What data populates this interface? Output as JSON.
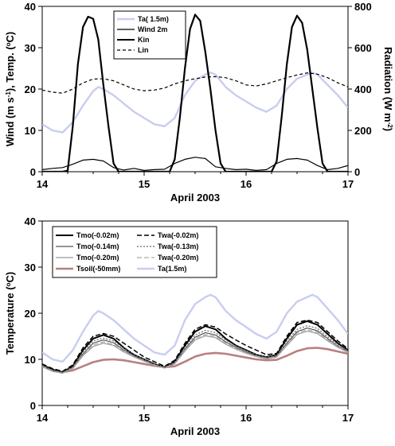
{
  "chart_data": [
    {
      "type": "line",
      "xlabel": "April 2003",
      "ylabel_left": "Wind (m s-1), Temp. (oC)",
      "ylabel_right": "Radiation (W m-2)",
      "xlim": [
        14,
        17
      ],
      "ylim_left": [
        0,
        40
      ],
      "ylim_right": [
        0,
        800
      ],
      "xticks": [
        "14",
        "15",
        "16",
        "17"
      ],
      "yticks_left": [
        "0",
        "10",
        "20",
        "30",
        "40"
      ],
      "yticks_right": [
        "0",
        "200",
        "400",
        "600",
        "800"
      ],
      "legend": [
        "Ta( 1.5m)",
        "Wind 2m",
        "Kin",
        "Lin"
      ],
      "legend_position": "top-center",
      "series": [
        {
          "name": "Ta( 1.5m)",
          "axis": "left",
          "color": "#c8cdf0",
          "x": [
            14.0,
            14.1,
            14.2,
            14.3,
            14.4,
            14.5,
            14.55,
            14.6,
            14.7,
            14.8,
            14.9,
            15.0,
            15.1,
            15.2,
            15.3,
            15.4,
            15.5,
            15.6,
            15.65,
            15.7,
            15.8,
            15.9,
            16.0,
            16.1,
            16.2,
            16.3,
            16.4,
            16.5,
            16.6,
            16.65,
            16.7,
            16.8,
            16.9,
            17.0
          ],
          "y": [
            11.5,
            10,
            9.5,
            12,
            16,
            19.5,
            20.5,
            20,
            18.5,
            16.5,
            14.5,
            13,
            11.5,
            11,
            13,
            18.5,
            22,
            23.5,
            24,
            23.5,
            20.5,
            18.5,
            17,
            15.5,
            14.5,
            16,
            20,
            22.5,
            23.5,
            24,
            23.5,
            21,
            18.5,
            15.5
          ]
        },
        {
          "name": "Wind 2m",
          "axis": "left",
          "color": "#000000",
          "x": [
            14.0,
            14.1,
            14.2,
            14.3,
            14.4,
            14.5,
            14.6,
            14.7,
            14.8,
            14.9,
            15.0,
            15.1,
            15.2,
            15.3,
            15.4,
            15.5,
            15.6,
            15.7,
            15.8,
            15.9,
            16.0,
            16.1,
            16.2,
            16.3,
            16.4,
            16.5,
            16.6,
            16.7,
            16.8,
            16.9,
            17.0
          ],
          "y": [
            0.5,
            0.8,
            1.0,
            1.8,
            2.8,
            3.0,
            2.6,
            1.0,
            0.4,
            0.8,
            0.3,
            0.5,
            0.6,
            2.0,
            3.0,
            3.5,
            3.2,
            1.2,
            0.8,
            0.5,
            0.6,
            0.3,
            0.5,
            2.0,
            3.0,
            3.2,
            2.8,
            1.5,
            0.5,
            0.8,
            1.5
          ]
        },
        {
          "name": "Kin",
          "axis": "right",
          "color": "#000000",
          "x": [
            14.0,
            14.2,
            14.25,
            14.3,
            14.35,
            14.4,
            14.45,
            14.5,
            14.55,
            14.6,
            14.65,
            14.7,
            14.75,
            14.8,
            15.0,
            15.25,
            15.3,
            15.35,
            15.4,
            15.45,
            15.5,
            15.55,
            15.6,
            15.65,
            15.7,
            15.75,
            15.8,
            16.0,
            16.25,
            16.3,
            16.35,
            16.4,
            16.45,
            16.5,
            16.55,
            16.6,
            16.65,
            16.7,
            16.75,
            16.8,
            17.0
          ],
          "y": [
            0,
            0,
            5,
            220,
            520,
            700,
            750,
            740,
            640,
            420,
            220,
            40,
            0,
            0,
            0,
            0,
            60,
            260,
            500,
            690,
            760,
            730,
            580,
            400,
            200,
            40,
            0,
            0,
            0,
            50,
            270,
            520,
            700,
            755,
            720,
            590,
            400,
            210,
            40,
            0,
            0
          ]
        },
        {
          "name": "Lin",
          "axis": "right",
          "color": "#000000",
          "dash": "dashed",
          "x": [
            14.0,
            14.1,
            14.2,
            14.3,
            14.4,
            14.5,
            14.6,
            14.7,
            14.8,
            14.9,
            15.0,
            15.1,
            15.2,
            15.3,
            15.4,
            15.5,
            15.6,
            15.7,
            15.8,
            15.9,
            16.0,
            16.1,
            16.2,
            16.3,
            16.4,
            16.5,
            16.6,
            16.7,
            16.8,
            16.9,
            17.0
          ],
          "y": [
            395,
            385,
            380,
            400,
            430,
            448,
            450,
            440,
            420,
            400,
            392,
            395,
            405,
            425,
            440,
            450,
            458,
            460,
            455,
            440,
            420,
            415,
            425,
            440,
            455,
            468,
            478,
            472,
            455,
            430,
            410
          ]
        }
      ]
    },
    {
      "type": "line",
      "xlabel": "April 2003",
      "ylabel": "Temperature (oC)",
      "xlim": [
        14,
        17
      ],
      "ylim": [
        0,
        40
      ],
      "xticks": [
        "14",
        "15",
        "16",
        "17"
      ],
      "yticks": [
        "0",
        "10",
        "20",
        "30",
        "40"
      ],
      "legend": [
        "Tmo(-0.02m)",
        "Twa(-0.02m)",
        "Tmo(-0.14m)",
        "Twa(-0.13m)",
        "Tmo(-0.20m)",
        "Twa(-0.20m)",
        "Tsoil(-50mm)",
        "Ta(1.5m)"
      ],
      "legend_position": "top-left",
      "series": [
        {
          "name": "Tmo(-0.02m)",
          "color": "#000000",
          "width": 2.0,
          "x": [
            14.0,
            14.1,
            14.2,
            14.3,
            14.4,
            14.5,
            14.6,
            14.7,
            14.8,
            14.9,
            15.0,
            15.1,
            15.2,
            15.3,
            15.4,
            15.5,
            15.6,
            15.7,
            15.8,
            15.9,
            16.0,
            16.1,
            16.2,
            16.3,
            16.4,
            16.5,
            16.6,
            16.7,
            16.8,
            16.9,
            17.0
          ],
          "y": [
            8.8,
            7.8,
            7.2,
            8.5,
            12,
            14.5,
            15.3,
            14.5,
            12.5,
            11,
            10,
            9,
            8.3,
            9.5,
            13,
            16,
            17.2,
            16.5,
            14.5,
            13,
            12,
            11,
            10.5,
            11,
            14.5,
            17.5,
            18.3,
            17.5,
            15.5,
            13.5,
            12
          ]
        },
        {
          "name": "Twa(-0.02m)",
          "color": "#000000",
          "dash": "6,3",
          "width": 1.5,
          "x": [
            14.0,
            14.1,
            14.2,
            14.3,
            14.4,
            14.5,
            14.6,
            14.7,
            14.8,
            14.9,
            15.0,
            15.1,
            15.2,
            15.3,
            15.4,
            15.5,
            15.6,
            15.7,
            15.8,
            15.9,
            16.0,
            16.1,
            16.2,
            16.3,
            16.4,
            16.5,
            16.6,
            16.7,
            16.8,
            16.9,
            17.0
          ],
          "y": [
            9,
            8,
            7.4,
            8.8,
            12.5,
            15,
            15.6,
            15,
            13.5,
            12,
            10.5,
            9.5,
            8.5,
            9.8,
            13.5,
            16.5,
            17.5,
            17,
            15.5,
            14.2,
            13,
            12,
            11,
            11.3,
            15,
            18,
            18.5,
            18,
            16,
            14,
            12.3
          ]
        },
        {
          "name": "Tmo(-0.14m)",
          "color": "#555555",
          "width": 1.2,
          "x": [
            14.0,
            14.1,
            14.2,
            14.3,
            14.4,
            14.5,
            14.6,
            14.7,
            14.8,
            14.9,
            15.0,
            15.1,
            15.2,
            15.3,
            15.4,
            15.5,
            15.6,
            15.7,
            15.8,
            15.9,
            16.0,
            16.1,
            16.2,
            16.3,
            16.4,
            16.5,
            16.6,
            16.7,
            16.8,
            16.9,
            17.0
          ],
          "y": [
            8.6,
            7.6,
            7.1,
            8.2,
            11.2,
            13.5,
            14.2,
            13.6,
            12,
            10.8,
            9.8,
            8.8,
            8.2,
            9.2,
            12.2,
            14.8,
            15.8,
            15.3,
            13.8,
            12.6,
            11.6,
            10.8,
            10.3,
            10.7,
            13.5,
            16,
            16.8,
            16.2,
            14.5,
            12.9,
            11.7
          ]
        },
        {
          "name": "Twa(-0.13m)",
          "color": "#666666",
          "dash": "2,2",
          "width": 1.2,
          "x": [
            14.0,
            14.1,
            14.2,
            14.3,
            14.4,
            14.5,
            14.6,
            14.7,
            14.8,
            14.9,
            15.0,
            15.1,
            15.2,
            15.3,
            15.4,
            15.5,
            15.6,
            15.7,
            15.8,
            15.9,
            16.0,
            16.1,
            16.2,
            16.3,
            16.4,
            16.5,
            16.6,
            16.7,
            16.8,
            16.9,
            17.0
          ],
          "y": [
            8.7,
            7.7,
            7.2,
            8.4,
            11.6,
            14,
            14.6,
            14,
            12.4,
            11.1,
            10,
            9,
            8.3,
            9.4,
            12.6,
            15.3,
            16.3,
            15.8,
            14.2,
            12.9,
            11.9,
            11,
            10.5,
            10.9,
            14,
            16.5,
            17.3,
            16.7,
            14.9,
            13.2,
            11.9
          ]
        },
        {
          "name": "Tmo(-0.20m)",
          "color": "#999999",
          "width": 1.2,
          "x": [
            14.0,
            14.1,
            14.2,
            14.3,
            14.4,
            14.5,
            14.6,
            14.7,
            14.8,
            14.9,
            15.0,
            15.1,
            15.2,
            15.3,
            15.4,
            15.5,
            15.6,
            15.7,
            15.8,
            15.9,
            16.0,
            16.1,
            16.2,
            16.3,
            16.4,
            16.5,
            16.6,
            16.7,
            16.8,
            16.9,
            17.0
          ],
          "y": [
            8.4,
            7.4,
            7.0,
            8.0,
            10.8,
            12.8,
            13.5,
            13,
            11.6,
            10.5,
            9.6,
            8.7,
            8.1,
            9.0,
            11.8,
            14.2,
            15.1,
            14.7,
            13.3,
            12.2,
            11.3,
            10.6,
            10.1,
            10.5,
            13,
            15.4,
            16.1,
            15.6,
            14,
            12.6,
            11.5
          ]
        },
        {
          "name": "Twa(-0.20m)",
          "color": "#aaaaaa",
          "dash": "6,3",
          "width": 1.2,
          "x": [
            14.0,
            14.1,
            14.2,
            14.3,
            14.4,
            14.5,
            14.6,
            14.7,
            14.8,
            14.9,
            15.0,
            15.1,
            15.2,
            15.3,
            15.4,
            15.5,
            15.6,
            15.7,
            15.8,
            15.9,
            16.0,
            16.1,
            16.2,
            16.3,
            16.4,
            16.5,
            16.6,
            16.7,
            16.8,
            16.9,
            17.0
          ],
          "y": [
            8.5,
            7.5,
            7.0,
            8.1,
            11,
            13.1,
            13.8,
            13.2,
            11.8,
            10.6,
            9.7,
            8.8,
            8.1,
            9.1,
            12,
            14.5,
            15.4,
            15,
            13.5,
            12.4,
            11.4,
            10.7,
            10.2,
            10.6,
            13.2,
            15.7,
            16.4,
            15.9,
            14.2,
            12.8,
            11.6
          ]
        },
        {
          "name": "Tsoil(-50mm)",
          "color": "#b88080",
          "width": 2.6,
          "x": [
            14.0,
            14.1,
            14.2,
            14.3,
            14.4,
            14.5,
            14.6,
            14.7,
            14.8,
            14.9,
            15.0,
            15.1,
            15.2,
            15.3,
            15.4,
            15.5,
            15.6,
            15.7,
            15.8,
            15.9,
            16.0,
            16.1,
            16.2,
            16.3,
            16.4,
            16.5,
            16.6,
            16.7,
            16.8,
            16.9,
            17.0
          ],
          "y": [
            8.5,
            7.7,
            7.2,
            7.6,
            8.5,
            9.4,
            9.9,
            10,
            9.8,
            9.4,
            9.0,
            8.6,
            8.3,
            8.5,
            9.5,
            10.6,
            11.2,
            11.4,
            11.2,
            10.8,
            10.4,
            10,
            9.8,
            9.9,
            10.8,
            11.8,
            12.4,
            12.5,
            12.2,
            11.7,
            11.2
          ]
        },
        {
          "name": "Ta(1.5m)",
          "color": "#c8cdf0",
          "width": 2.4,
          "x": [
            14.0,
            14.1,
            14.2,
            14.3,
            14.4,
            14.5,
            14.55,
            14.6,
            14.7,
            14.8,
            14.9,
            15.0,
            15.1,
            15.2,
            15.3,
            15.4,
            15.5,
            15.6,
            15.65,
            15.7,
            15.8,
            15.9,
            16.0,
            16.1,
            16.2,
            16.3,
            16.4,
            16.5,
            16.6,
            16.65,
            16.7,
            16.8,
            16.9,
            17.0
          ],
          "y": [
            11.5,
            10,
            9.5,
            12,
            16,
            19.5,
            20.5,
            20,
            18.5,
            16.5,
            14.5,
            13,
            11.5,
            11,
            13,
            18.5,
            22,
            23.5,
            24,
            23.5,
            20.5,
            18.5,
            17,
            15.5,
            14.5,
            16,
            20,
            22.5,
            23.5,
            24,
            23.5,
            21,
            18.5,
            15.5
          ]
        }
      ]
    }
  ]
}
